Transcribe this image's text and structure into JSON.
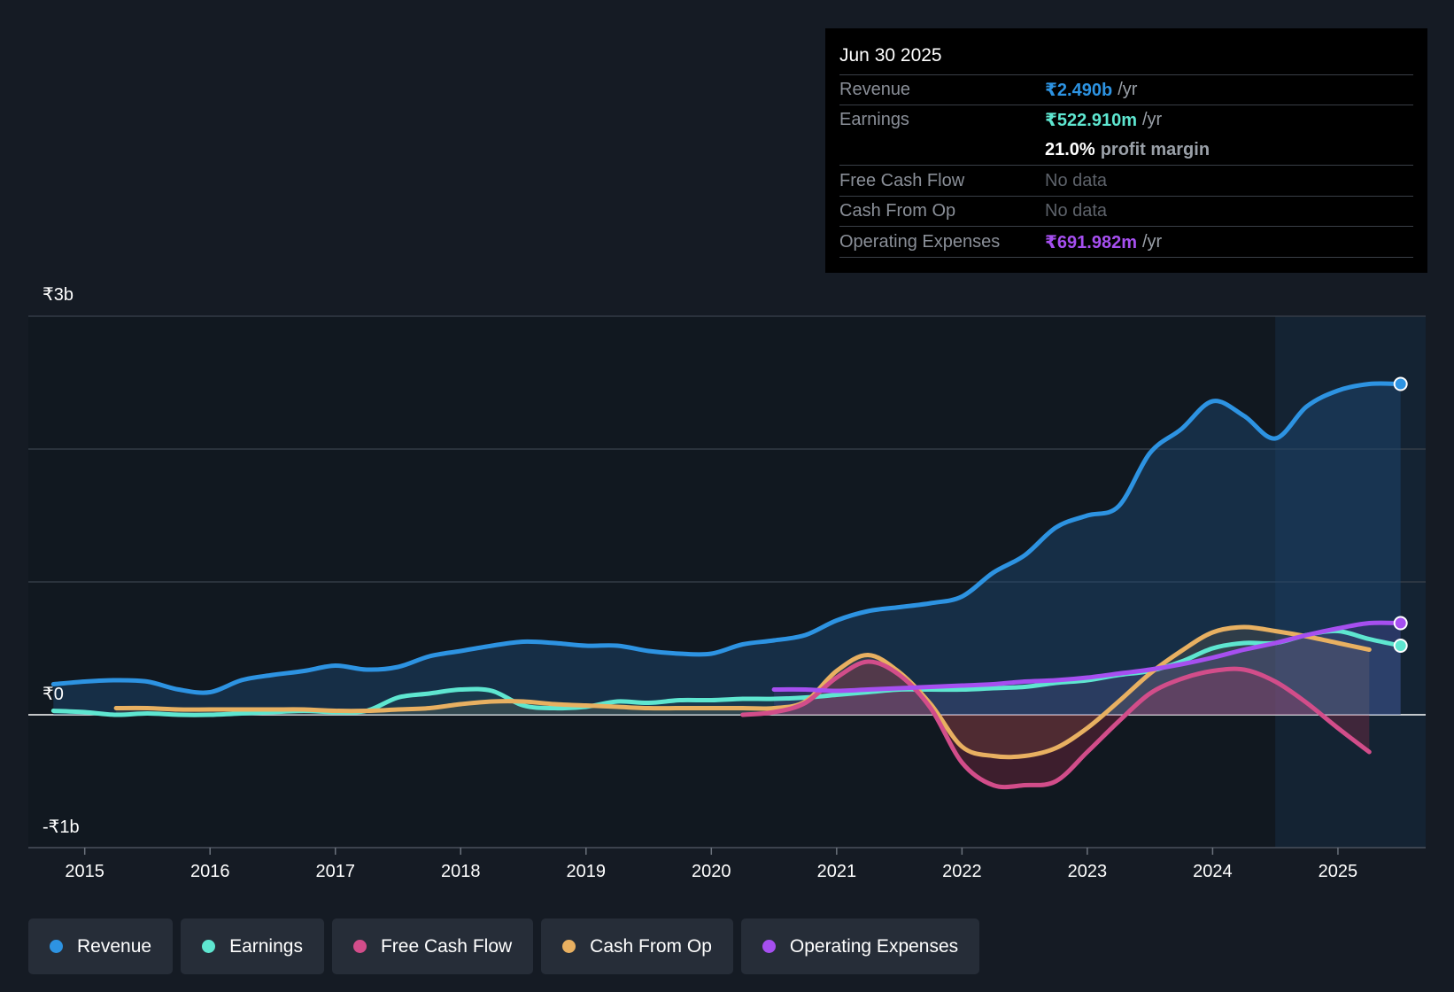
{
  "tooltip": {
    "date": "Jun 30 2025",
    "revenue_label": "Revenue",
    "revenue_value": "₹2.490b",
    "revenue_unit": "/yr",
    "earnings_label": "Earnings",
    "earnings_value": "₹522.910m",
    "earnings_unit": "/yr",
    "margin_value": "21.0%",
    "margin_label": "profit margin",
    "fcf_label": "Free Cash Flow",
    "fcf_value": "No data",
    "cfo_label": "Cash From Op",
    "cfo_value": "No data",
    "opex_label": "Operating Expenses",
    "opex_value": "₹691.982m",
    "opex_unit": "/yr"
  },
  "legend": [
    {
      "label": "Revenue",
      "color": "#2d93e2"
    },
    {
      "label": "Earnings",
      "color": "#5ee6d0"
    },
    {
      "label": "Free Cash Flow",
      "color": "#d24d8a"
    },
    {
      "label": "Cash From Op",
      "color": "#e8b061"
    },
    {
      "label": "Operating Expenses",
      "color": "#a64ff0"
    }
  ],
  "chart_data": {
    "type": "line",
    "title": "",
    "xlabel": "",
    "ylabel": "",
    "y_tick_labels": [
      "₹3b",
      "₹0",
      "-₹1b"
    ],
    "ylim": [
      -1.0,
      3.0
    ],
    "xlim": [
      2014.55,
      2025.7
    ],
    "x_ticks": [
      2015,
      2016,
      2017,
      2018,
      2019,
      2020,
      2021,
      2022,
      2023,
      2024,
      2025
    ],
    "x_tick_labels": [
      "2015",
      "2016",
      "2017",
      "2018",
      "2019",
      "2020",
      "2021",
      "2022",
      "2023",
      "2024",
      "2025"
    ],
    "highlight_start": 2024.5,
    "series": [
      {
        "name": "Revenue",
        "color": "#2d93e2",
        "x": [
          2014.75,
          2015.0,
          2015.25,
          2015.5,
          2015.75,
          2016.0,
          2016.25,
          2016.5,
          2016.75,
          2017.0,
          2017.25,
          2017.5,
          2017.75,
          2018.0,
          2018.25,
          2018.5,
          2018.75,
          2019.0,
          2019.25,
          2019.5,
          2019.75,
          2020.0,
          2020.25,
          2020.5,
          2020.75,
          2021.0,
          2021.25,
          2021.5,
          2021.75,
          2022.0,
          2022.25,
          2022.5,
          2022.75,
          2023.0,
          2023.25,
          2023.5,
          2023.75,
          2024.0,
          2024.25,
          2024.5,
          2024.75,
          2025.0,
          2025.25,
          2025.5
        ],
        "y": [
          0.23,
          0.25,
          0.26,
          0.25,
          0.19,
          0.17,
          0.26,
          0.3,
          0.33,
          0.37,
          0.34,
          0.36,
          0.44,
          0.48,
          0.52,
          0.55,
          0.54,
          0.52,
          0.52,
          0.48,
          0.46,
          0.46,
          0.53,
          0.56,
          0.6,
          0.71,
          0.78,
          0.81,
          0.84,
          0.89,
          1.07,
          1.2,
          1.41,
          1.5,
          1.57,
          1.97,
          2.15,
          2.36,
          2.25,
          2.08,
          2.32,
          2.44,
          2.49,
          2.49
        ]
      },
      {
        "name": "Earnings",
        "color": "#5ee6d0",
        "x": [
          2014.75,
          2015.0,
          2015.25,
          2015.5,
          2015.75,
          2016.0,
          2016.25,
          2016.5,
          2016.75,
          2017.0,
          2017.25,
          2017.5,
          2017.75,
          2018.0,
          2018.25,
          2018.5,
          2018.75,
          2019.0,
          2019.25,
          2019.5,
          2019.75,
          2020.0,
          2020.25,
          2020.5,
          2020.75,
          2021.0,
          2021.25,
          2021.5,
          2021.75,
          2022.0,
          2022.25,
          2022.5,
          2022.75,
          2023.0,
          2023.25,
          2023.5,
          2023.75,
          2024.0,
          2024.25,
          2024.5,
          2024.75,
          2025.0,
          2025.25,
          2025.5
        ],
        "y": [
          0.03,
          0.02,
          0.0,
          0.01,
          0.0,
          0.0,
          0.01,
          0.02,
          0.03,
          0.02,
          0.03,
          0.13,
          0.16,
          0.19,
          0.18,
          0.07,
          0.05,
          0.06,
          0.1,
          0.09,
          0.11,
          0.11,
          0.12,
          0.12,
          0.13,
          0.15,
          0.17,
          0.19,
          0.19,
          0.19,
          0.2,
          0.21,
          0.24,
          0.26,
          0.3,
          0.33,
          0.4,
          0.5,
          0.54,
          0.54,
          0.6,
          0.63,
          0.57,
          0.52
        ]
      },
      {
        "name": "Free Cash Flow",
        "color": "#d24d8a",
        "x": [
          2020.25,
          2020.5,
          2020.75,
          2021.0,
          2021.25,
          2021.5,
          2021.75,
          2022.0,
          2022.25,
          2022.5,
          2022.75,
          2023.0,
          2023.25,
          2023.5,
          2023.75,
          2024.0,
          2024.25,
          2024.5,
          2024.75,
          2025.0,
          2025.25
        ],
        "y": [
          0.0,
          0.02,
          0.09,
          0.28,
          0.4,
          0.3,
          0.05,
          -0.36,
          -0.53,
          -0.53,
          -0.5,
          -0.28,
          -0.05,
          0.16,
          0.27,
          0.33,
          0.34,
          0.25,
          0.09,
          -0.1,
          -0.28
        ]
      },
      {
        "name": "Cash From Op",
        "color": "#e8b061",
        "x": [
          2015.25,
          2015.5,
          2015.75,
          2016.0,
          2016.25,
          2016.5,
          2016.75,
          2017.0,
          2017.25,
          2017.5,
          2017.75,
          2018.0,
          2018.25,
          2018.5,
          2018.75,
          2019.0,
          2019.25,
          2019.5,
          2019.75,
          2020.0,
          2020.25,
          2020.5,
          2020.75,
          2021.0,
          2021.25,
          2021.5,
          2021.75,
          2022.0,
          2022.25,
          2022.5,
          2022.75,
          2023.0,
          2023.25,
          2023.5,
          2023.75,
          2024.0,
          2024.25,
          2024.5,
          2024.75,
          2025.0,
          2025.25
        ],
        "y": [
          0.05,
          0.05,
          0.04,
          0.04,
          0.04,
          0.04,
          0.04,
          0.03,
          0.03,
          0.04,
          0.05,
          0.08,
          0.1,
          0.1,
          0.08,
          0.07,
          0.06,
          0.05,
          0.05,
          0.05,
          0.05,
          0.05,
          0.1,
          0.33,
          0.45,
          0.32,
          0.08,
          -0.24,
          -0.31,
          -0.31,
          -0.25,
          -0.1,
          0.1,
          0.31,
          0.48,
          0.62,
          0.66,
          0.63,
          0.59,
          0.54,
          0.49
        ]
      },
      {
        "name": "Operating Expenses",
        "color": "#a64ff0",
        "x": [
          2020.5,
          2020.75,
          2021.0,
          2021.25,
          2021.5,
          2021.75,
          2022.0,
          2022.25,
          2022.5,
          2022.75,
          2023.0,
          2023.25,
          2023.5,
          2023.75,
          2024.0,
          2024.25,
          2024.5,
          2024.75,
          2025.0,
          2025.25,
          2025.5
        ],
        "y": [
          0.19,
          0.19,
          0.18,
          0.19,
          0.2,
          0.21,
          0.22,
          0.23,
          0.25,
          0.26,
          0.28,
          0.31,
          0.34,
          0.38,
          0.43,
          0.49,
          0.54,
          0.6,
          0.65,
          0.69,
          0.69
        ]
      }
    ]
  }
}
